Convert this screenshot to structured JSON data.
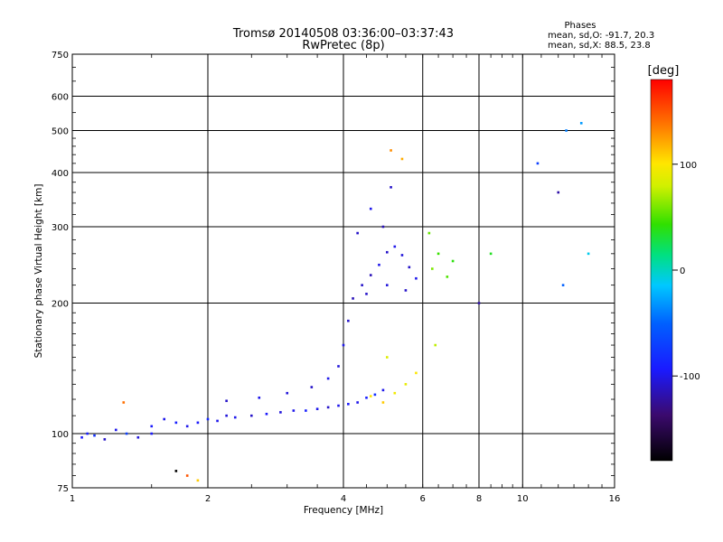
{
  "chart_data": {
    "type": "scatter",
    "title": "Tromsø 20140508 03:36:00–03:37:43",
    "subtitle": "RwPretec (8p)",
    "stats": {
      "header": "Phases",
      "line1": "mean, sd,O: -91.7, 20.3",
      "line2": "mean, sd,X:  88.5, 23.8"
    },
    "xlabel": "Frequency [MHz]",
    "ylabel": "Stationary phase Virtual Height [km]",
    "x_scale": "log",
    "y_scale": "log",
    "xlim": [
      1,
      16
    ],
    "ylim": [
      75,
      750
    ],
    "x_ticks": [
      1,
      2,
      4,
      6,
      8,
      10,
      16
    ],
    "x_tick_labels": [
      "1",
      "2",
      "4",
      "6",
      "8",
      "10",
      "16"
    ],
    "y_ticks": [
      75,
      100,
      200,
      300,
      400,
      500,
      600,
      750
    ],
    "y_tick_labels": [
      "75",
      "100",
      "200",
      "300",
      "400",
      "500",
      "600",
      "750"
    ],
    "grid": true,
    "colorbar": {
      "label": "[deg]",
      "range": [
        -180,
        180
      ],
      "ticks": [
        -100,
        0,
        100
      ],
      "tick_labels": [
        "-100",
        "0",
        "100"
      ]
    },
    "series": [
      {
        "points": [
          [
            1.05,
            98,
            -95
          ],
          [
            1.08,
            100,
            -90
          ],
          [
            1.12,
            99,
            -80
          ],
          [
            1.18,
            97,
            -110
          ],
          [
            1.25,
            102,
            -100
          ],
          [
            1.32,
            100,
            -70
          ],
          [
            1.4,
            98,
            -105
          ],
          [
            1.5,
            104,
            -95
          ],
          [
            1.6,
            108,
            -100
          ],
          [
            1.7,
            106,
            -90
          ],
          [
            1.8,
            104,
            -100
          ],
          [
            1.9,
            106,
            -95
          ],
          [
            2.0,
            108,
            -85
          ],
          [
            2.1,
            107,
            -100
          ],
          [
            2.2,
            110,
            -105
          ],
          [
            2.3,
            109,
            -100
          ],
          [
            2.5,
            110,
            -110
          ],
          [
            2.7,
            111,
            -95
          ],
          [
            2.9,
            112,
            -105
          ],
          [
            3.1,
            113,
            -100
          ],
          [
            3.3,
            113,
            -90
          ],
          [
            3.5,
            114,
            -100
          ],
          [
            3.7,
            115,
            -110
          ],
          [
            3.9,
            116,
            -100
          ],
          [
            4.1,
            117,
            -95
          ],
          [
            4.3,
            118,
            -100
          ],
          [
            4.5,
            121,
            -90
          ],
          [
            4.7,
            123,
            -80
          ],
          [
            4.9,
            126,
            -100
          ],
          [
            2.2,
            119,
            -110
          ],
          [
            2.6,
            121,
            -100
          ],
          [
            3.0,
            124,
            -105
          ],
          [
            3.4,
            128,
            -110
          ],
          [
            3.7,
            134,
            -100
          ],
          [
            3.9,
            143,
            -105
          ],
          [
            4.0,
            160,
            -100
          ],
          [
            4.1,
            182,
            -110
          ],
          [
            4.2,
            205,
            -115
          ],
          [
            4.4,
            220,
            -110
          ],
          [
            4.6,
            232,
            -115
          ],
          [
            4.8,
            245,
            -100
          ],
          [
            5.0,
            262,
            -110
          ],
          [
            5.2,
            270,
            -100
          ],
          [
            5.4,
            258,
            -105
          ],
          [
            5.6,
            242,
            -110
          ],
          [
            5.8,
            228,
            -100
          ],
          [
            4.5,
            210,
            -110
          ],
          [
            5.0,
            220,
            -105
          ],
          [
            5.5,
            214,
            -110
          ],
          [
            4.3,
            290,
            -110
          ],
          [
            4.6,
            330,
            -100
          ],
          [
            4.9,
            300,
            -115
          ],
          [
            5.1,
            370,
            -110
          ],
          [
            6.3,
            240,
            60
          ],
          [
            6.5,
            260,
            45
          ],
          [
            6.8,
            230,
            50
          ],
          [
            7.0,
            250,
            40
          ],
          [
            6.2,
            290,
            55
          ],
          [
            4.6,
            122,
            100
          ],
          [
            4.9,
            118,
            110
          ],
          [
            5.2,
            124,
            95
          ],
          [
            5.5,
            130,
            90
          ],
          [
            5.8,
            138,
            100
          ],
          [
            5.0,
            150,
            85
          ],
          [
            6.4,
            160,
            75
          ],
          [
            8.0,
            200,
            -120
          ],
          [
            8.5,
            260,
            35
          ],
          [
            12.5,
            500,
            -40
          ],
          [
            13.5,
            520,
            -30
          ],
          [
            14.0,
            260,
            -10
          ],
          [
            12.0,
            360,
            -120
          ],
          [
            12.3,
            220,
            -50
          ],
          [
            10.8,
            420,
            -70
          ],
          [
            5.1,
            450,
            130
          ],
          [
            5.4,
            430,
            120
          ],
          [
            1.3,
            118,
            140
          ],
          [
            1.7,
            82,
            -180
          ],
          [
            1.8,
            80,
            150
          ],
          [
            1.9,
            78,
            110
          ],
          [
            1.5,
            100,
            -95
          ]
        ]
      }
    ]
  }
}
